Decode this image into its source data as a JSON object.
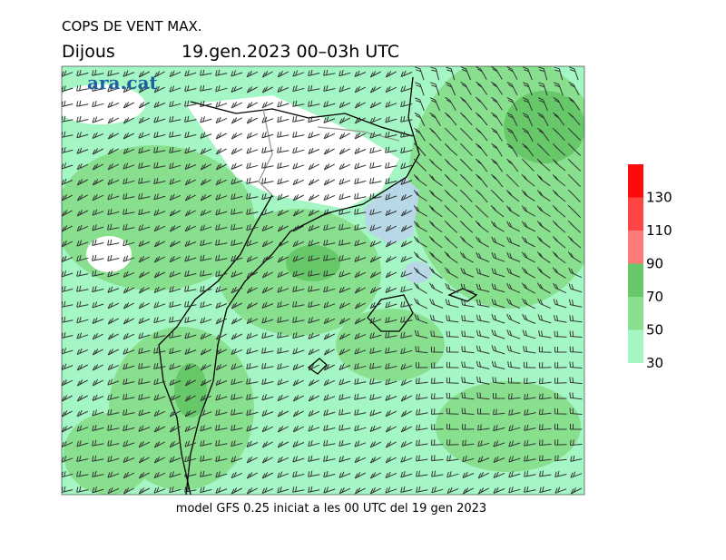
{
  "header": {
    "title": "COPS DE VENT MAX.",
    "day": "Dijous",
    "date": "19.gen.2023 00–03h UTC"
  },
  "logo": "ara.cat",
  "footer": "model GFS 0.25 iniciat a les 00 UTC del 19 gen 2023",
  "legend": {
    "ticks": [
      30,
      50,
      70,
      90,
      110,
      130
    ],
    "colors": [
      "#a4f7c4",
      "#88e08e",
      "#66c868",
      "#ff7a7a",
      "#ff4444",
      "#ff0a0a"
    ]
  }
}
